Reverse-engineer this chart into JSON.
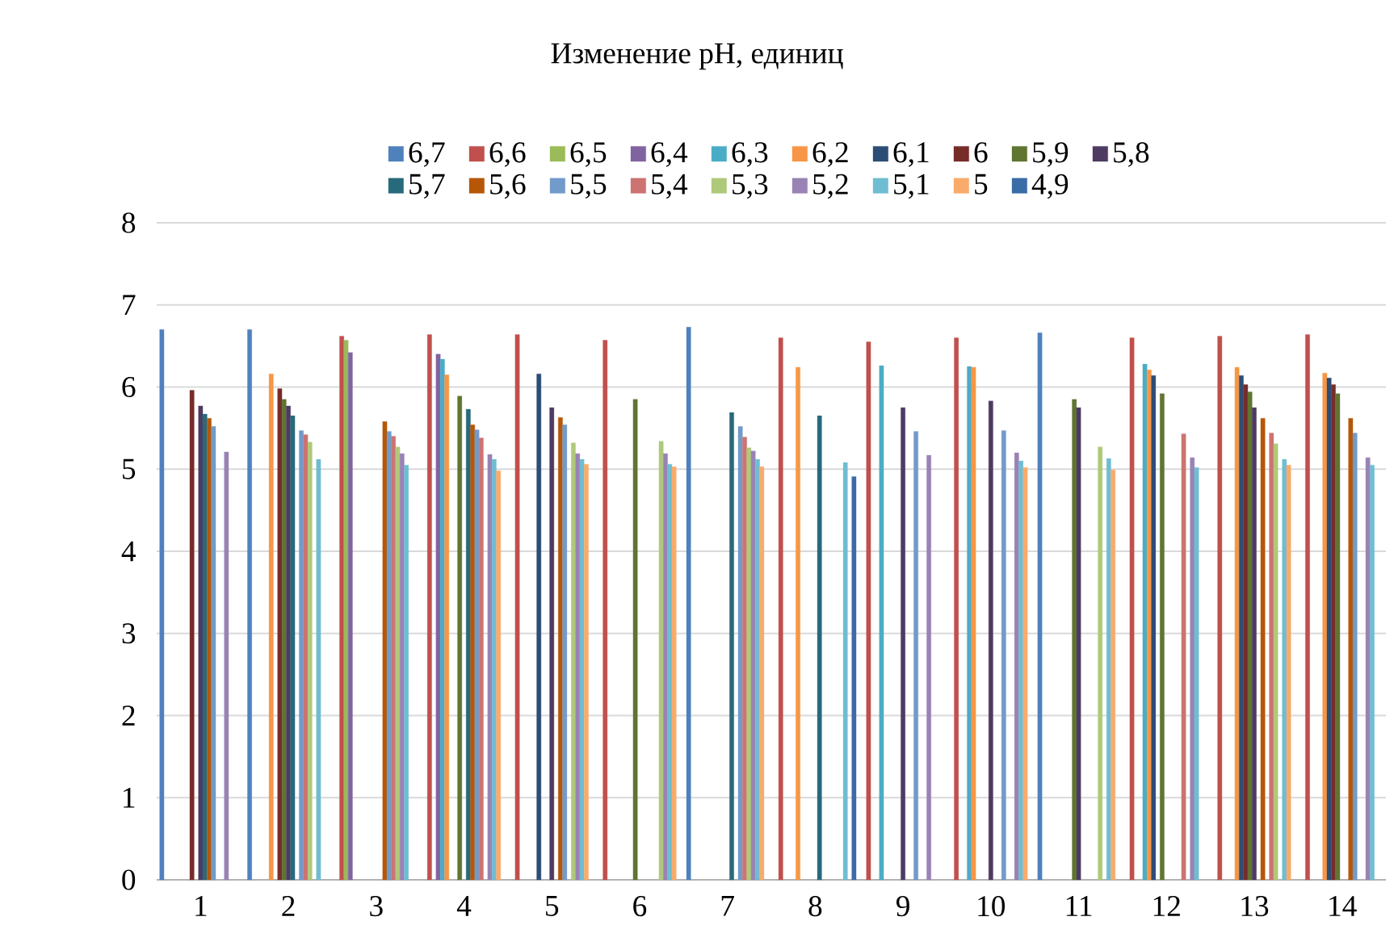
{
  "chart_data": {
    "type": "bar",
    "title": "Изменение pH, единиц",
    "categories": [
      "1",
      "2",
      "3",
      "4",
      "5",
      "6",
      "7",
      "8",
      "9",
      "10",
      "11",
      "12",
      "13",
      "14"
    ],
    "series": [
      {
        "name": "6,7",
        "color": "#4f81bd",
        "values": [
          6.7,
          6.7,
          null,
          null,
          null,
          null,
          6.73,
          null,
          null,
          null,
          6.66,
          null,
          null,
          null
        ]
      },
      {
        "name": "6,6",
        "color": "#c0504d",
        "values": [
          null,
          null,
          6.62,
          6.64,
          6.64,
          6.57,
          null,
          6.6,
          6.55,
          6.6,
          null,
          6.6,
          6.62,
          6.64
        ]
      },
      {
        "name": "6,5",
        "color": "#9bbb59",
        "values": [
          null,
          null,
          6.57,
          null,
          null,
          null,
          null,
          null,
          null,
          null,
          null,
          null,
          null,
          null
        ]
      },
      {
        "name": "6,4",
        "color": "#8064a2",
        "values": [
          null,
          null,
          6.42,
          6.4,
          null,
          null,
          null,
          null,
          null,
          null,
          null,
          null,
          null,
          null
        ]
      },
      {
        "name": "6,3",
        "color": "#4bacc6",
        "values": [
          null,
          null,
          null,
          6.34,
          null,
          null,
          null,
          null,
          6.26,
          6.25,
          null,
          6.28,
          null,
          null
        ]
      },
      {
        "name": "6,2",
        "color": "#f79646",
        "values": [
          null,
          6.16,
          null,
          6.15,
          null,
          null,
          null,
          6.24,
          null,
          6.24,
          null,
          6.21,
          6.24,
          6.17
        ]
      },
      {
        "name": "6,1",
        "color": "#2c4d75",
        "values": [
          null,
          null,
          null,
          null,
          6.16,
          null,
          null,
          null,
          null,
          null,
          null,
          6.14,
          6.14,
          6.11
        ]
      },
      {
        "name": "6",
        "color": "#772c2a",
        "values": [
          5.96,
          5.98,
          null,
          null,
          null,
          null,
          null,
          null,
          null,
          null,
          null,
          null,
          6.03,
          6.03
        ]
      },
      {
        "name": "5,9",
        "color": "#5f7530",
        "values": [
          null,
          5.85,
          null,
          5.89,
          null,
          5.85,
          null,
          null,
          null,
          null,
          5.85,
          5.92,
          5.94,
          5.92
        ]
      },
      {
        "name": "5,8",
        "color": "#4d3b62",
        "values": [
          5.77,
          5.77,
          null,
          null,
          5.75,
          null,
          null,
          null,
          5.75,
          5.83,
          5.75,
          null,
          5.75,
          null
        ]
      },
      {
        "name": "5,7",
        "color": "#276a7c",
        "values": [
          5.67,
          5.65,
          null,
          5.73,
          null,
          null,
          5.69,
          5.65,
          null,
          null,
          null,
          null,
          null,
          null
        ]
      },
      {
        "name": "5,6",
        "color": "#b65708",
        "values": [
          5.62,
          null,
          5.58,
          5.54,
          5.63,
          null,
          null,
          null,
          null,
          null,
          null,
          null,
          5.62,
          5.62
        ]
      },
      {
        "name": "5,5",
        "color": "#729aca",
        "values": [
          5.52,
          5.47,
          5.46,
          5.48,
          5.54,
          null,
          5.52,
          null,
          5.46,
          5.47,
          null,
          null,
          null,
          5.44
        ]
      },
      {
        "name": "5,4",
        "color": "#cd7371",
        "values": [
          null,
          5.42,
          5.4,
          5.38,
          null,
          null,
          5.39,
          null,
          null,
          null,
          null,
          5.43,
          5.44,
          null
        ]
      },
      {
        "name": "5,3",
        "color": "#afc97a",
        "values": [
          null,
          5.33,
          5.27,
          null,
          5.32,
          5.34,
          5.26,
          null,
          null,
          null,
          5.27,
          null,
          5.31,
          null
        ]
      },
      {
        "name": "5,2",
        "color": "#9983b5",
        "values": [
          5.21,
          null,
          5.19,
          5.18,
          5.19,
          5.19,
          5.22,
          null,
          5.17,
          5.2,
          null,
          5.14,
          null,
          5.14
        ]
      },
      {
        "name": "5,1",
        "color": "#6fbdd1",
        "values": [
          null,
          5.12,
          5.05,
          5.12,
          5.12,
          5.06,
          5.12,
          5.08,
          null,
          5.1,
          5.13,
          5.02,
          5.12,
          5.05
        ]
      },
      {
        "name": "5",
        "color": "#f9ab6b",
        "values": [
          null,
          null,
          null,
          4.98,
          5.06,
          5.03,
          5.03,
          null,
          null,
          5.02,
          4.99,
          null,
          5.05,
          null
        ]
      },
      {
        "name": "4,9",
        "color": "#3a6ca8",
        "values": [
          null,
          null,
          null,
          null,
          null,
          null,
          null,
          4.91,
          null,
          null,
          null,
          null,
          null,
          null
        ]
      }
    ],
    "ylim": [
      0,
      8
    ],
    "yticks": [
      0,
      1,
      2,
      3,
      4,
      5,
      6,
      7,
      8
    ],
    "grid": "y",
    "legend": "top"
  }
}
